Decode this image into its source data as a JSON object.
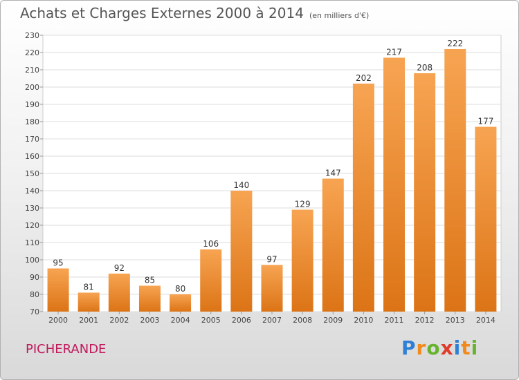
{
  "header": {
    "title": "Achats et Charges Externes 2000 à 2014",
    "unit": "(en milliers d'€)"
  },
  "commune": "PICHERANDE",
  "logo": {
    "text": "Proxiti",
    "letters": [
      {
        "char": "P",
        "color": "#2e7fd6"
      },
      {
        "char": "r",
        "color": "#f08a1c"
      },
      {
        "char": "o",
        "color": "#67b32e"
      },
      {
        "char": "x",
        "color": "#e03a2a"
      },
      {
        "char": "i",
        "color": "#2e7fd6"
      },
      {
        "char": "t",
        "color": "#f08a1c"
      },
      {
        "char": "i",
        "color": "#67b32e"
      }
    ]
  },
  "chart_data": {
    "type": "bar",
    "title": "Achats et Charges Externes 2000 à 2014",
    "subtitle": "(en milliers d'€)",
    "categories": [
      "2000",
      "2001",
      "2002",
      "2003",
      "2004",
      "2005",
      "2006",
      "2007",
      "2008",
      "2009",
      "2010",
      "2011",
      "2012",
      "2013",
      "2014"
    ],
    "values": [
      95,
      81,
      92,
      85,
      80,
      106,
      140,
      97,
      129,
      147,
      202,
      217,
      208,
      222,
      177
    ],
    "ylim": [
      70,
      230
    ],
    "yticks": [
      70,
      80,
      90,
      100,
      110,
      120,
      130,
      140,
      150,
      160,
      170,
      180,
      190,
      200,
      210,
      220,
      230
    ],
    "grid": true,
    "bar_color": "#f0913a",
    "bar_color_light": "#f7a857",
    "bar_color_dark": "#d96f10"
  }
}
